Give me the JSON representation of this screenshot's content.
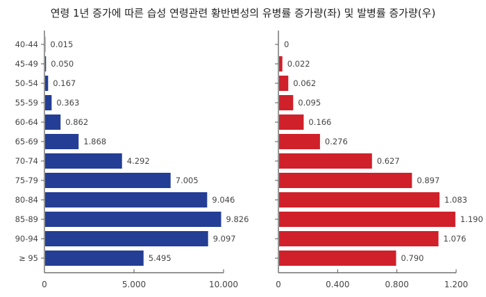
{
  "title": "연령 1년 증가에 따른 습성 연령관련 황반변성의 유병률 증가량(좌) 및 발병률 증가량(우)",
  "chart_data": [
    {
      "type": "bar",
      "orientation": "horizontal",
      "categories": [
        "40-44",
        "45-49",
        "50-54",
        "55-59",
        "60-64",
        "65-69",
        "70-74",
        "75-79",
        "80-84",
        "85-89",
        "90-94",
        "≥ 95"
      ],
      "values": [
        0.015,
        0.05,
        0.167,
        0.363,
        0.862,
        1.868,
        4.292,
        7.005,
        9.046,
        9.826,
        9.097,
        5.495
      ],
      "value_labels": [
        "0.015",
        "0.050",
        "0.167",
        "0.363",
        "0.862",
        "1.868",
        "4.292",
        "7.005",
        "9.046",
        "9.826",
        "9.097",
        "5.495"
      ],
      "xlim": [
        0,
        10
      ],
      "xticks": [
        0,
        5,
        10
      ],
      "xtick_labels": [
        "0",
        "5.000",
        "10.000"
      ],
      "color": "#233e94",
      "grid": false
    },
    {
      "type": "bar",
      "orientation": "horizontal",
      "categories": [
        "40-44",
        "45-49",
        "50-54",
        "55-59",
        "60-64",
        "65-69",
        "70-74",
        "75-79",
        "80-84",
        "85-89",
        "90-94",
        "≥ 95"
      ],
      "values": [
        0,
        0.022,
        0.062,
        0.095,
        0.166,
        0.276,
        0.627,
        0.897,
        1.083,
        1.19,
        1.076,
        0.79
      ],
      "value_labels": [
        "0",
        "0.022",
        "0.062",
        "0.095",
        "0.166",
        "0.276",
        "0.627",
        "0.897",
        "1.083",
        "1.190",
        "1.076",
        "0.790"
      ],
      "xlim": [
        0,
        1.2
      ],
      "xticks": [
        0,
        0.4,
        0.8,
        1.2
      ],
      "xtick_labels": [
        "0",
        "0.400",
        "0.800",
        "1.200"
      ],
      "color": "#d0202a",
      "grid": false
    }
  ]
}
